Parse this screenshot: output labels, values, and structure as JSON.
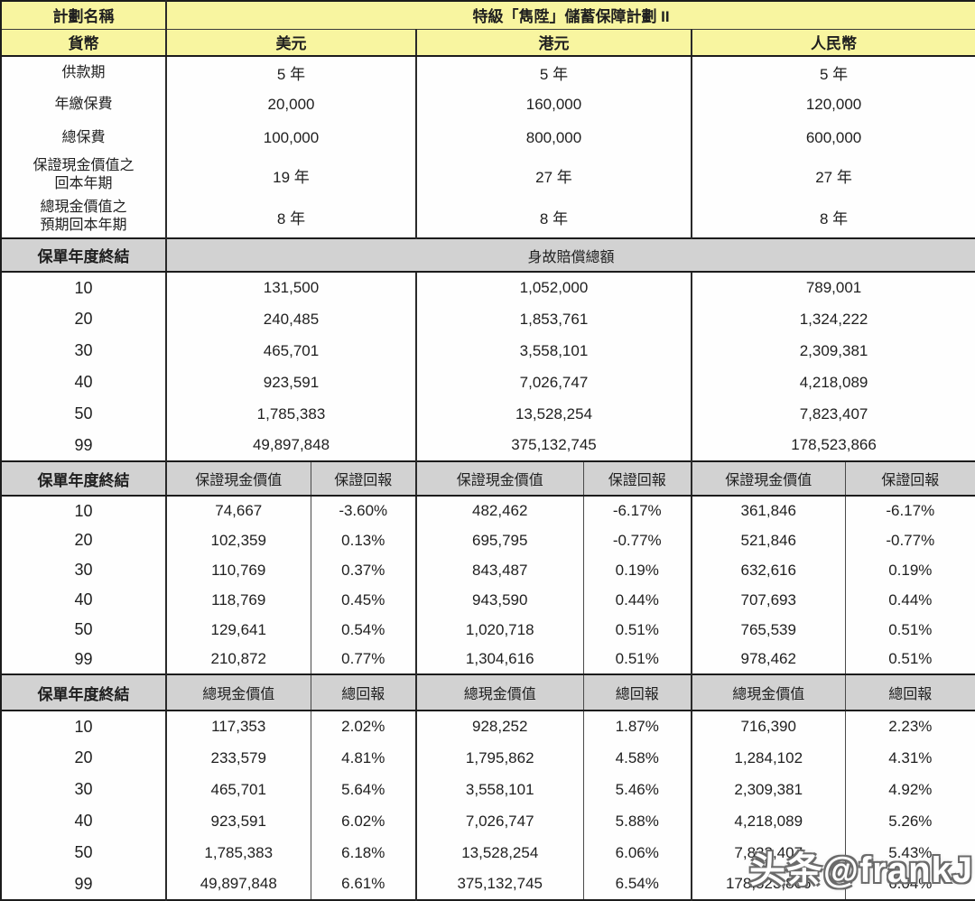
{
  "title_row": {
    "label": "計劃名稱",
    "value": "特級「雋陞」儲蓄保障計劃 II"
  },
  "currency_row": {
    "label": "貨幣",
    "currencies": [
      "美元",
      "港元",
      "人民幣"
    ]
  },
  "info_rows": [
    {
      "label": "供款期",
      "values": [
        "5 年",
        "5 年",
        "5 年"
      ]
    },
    {
      "label": "年繳保費",
      "values": [
        "20,000",
        "160,000",
        "120,000"
      ]
    },
    {
      "label": "總保費",
      "values": [
        "100,000",
        "800,000",
        "600,000"
      ]
    },
    {
      "label": "保證現金價值之\n回本年期",
      "values": [
        "19 年",
        "27 年",
        "27 年"
      ]
    },
    {
      "label": "總現金價值之\n預期回本年期",
      "values": [
        "8 年",
        "8 年",
        "8 年"
      ]
    }
  ],
  "death_benefit": {
    "header_label": "保單年度終結",
    "span_header": "身故賠償總額",
    "rows": [
      {
        "year": "10",
        "values": [
          "131,500",
          "1,052,000",
          "789,001"
        ]
      },
      {
        "year": "20",
        "values": [
          "240,485",
          "1,853,761",
          "1,324,222"
        ]
      },
      {
        "year": "30",
        "values": [
          "465,701",
          "3,558,101",
          "2,309,381"
        ]
      },
      {
        "year": "40",
        "values": [
          "923,591",
          "7,026,747",
          "4,218,089"
        ]
      },
      {
        "year": "50",
        "values": [
          "1,785,383",
          "13,528,254",
          "7,823,407"
        ]
      },
      {
        "year": "99",
        "values": [
          "49,897,848",
          "375,132,745",
          "178,523,866"
        ]
      }
    ]
  },
  "guaranteed": {
    "header_label": "保單年度終結",
    "col_headers": [
      "保證現金價值",
      "保證回報",
      "保證現金價值",
      "保證回報",
      "保證現金價值",
      "保證回報"
    ],
    "rows": [
      {
        "year": "10",
        "cells": [
          "74,667",
          "-3.60%",
          "482,462",
          "-6.17%",
          "361,846",
          "-6.17%"
        ]
      },
      {
        "year": "20",
        "cells": [
          "102,359",
          "0.13%",
          "695,795",
          "-0.77%",
          "521,846",
          "-0.77%"
        ]
      },
      {
        "year": "30",
        "cells": [
          "110,769",
          "0.37%",
          "843,487",
          "0.19%",
          "632,616",
          "0.19%"
        ]
      },
      {
        "year": "40",
        "cells": [
          "118,769",
          "0.45%",
          "943,590",
          "0.44%",
          "707,693",
          "0.44%"
        ]
      },
      {
        "year": "50",
        "cells": [
          "129,641",
          "0.54%",
          "1,020,718",
          "0.51%",
          "765,539",
          "0.51%"
        ]
      },
      {
        "year": "99",
        "cells": [
          "210,872",
          "0.77%",
          "1,304,616",
          "0.51%",
          "978,462",
          "0.51%"
        ]
      }
    ]
  },
  "total": {
    "header_label": "保單年度終結",
    "col_headers": [
      "總現金價值",
      "總回報",
      "總現金價值",
      "總回報",
      "總現金價值",
      "總回報"
    ],
    "rows": [
      {
        "year": "10",
        "cells": [
          "117,353",
          "2.02%",
          "928,252",
          "1.87%",
          "716,390",
          "2.23%"
        ]
      },
      {
        "year": "20",
        "cells": [
          "233,579",
          "4.81%",
          "1,795,862",
          "4.58%",
          "1,284,102",
          "4.31%"
        ]
      },
      {
        "year": "30",
        "cells": [
          "465,701",
          "5.64%",
          "3,558,101",
          "5.46%",
          "2,309,381",
          "4.92%"
        ]
      },
      {
        "year": "40",
        "cells": [
          "923,591",
          "6.02%",
          "7,026,747",
          "5.88%",
          "4,218,089",
          "5.26%"
        ]
      },
      {
        "year": "50",
        "cells": [
          "1,785,383",
          "6.18%",
          "13,528,254",
          "6.06%",
          "7,823,407",
          "5.43%"
        ]
      },
      {
        "year": "99",
        "cells": [
          "49,897,848",
          "6.61%",
          "375,132,745",
          "6.54%",
          "178,523,866",
          "6.04%"
        ]
      }
    ]
  },
  "watermark": "头条@frankJ",
  "colors": {
    "header_yellow": "#f8f5a0",
    "section_gray": "#d2d2d2",
    "border_dark": "#1c1c1c",
    "text": "#1f1f1f"
  }
}
